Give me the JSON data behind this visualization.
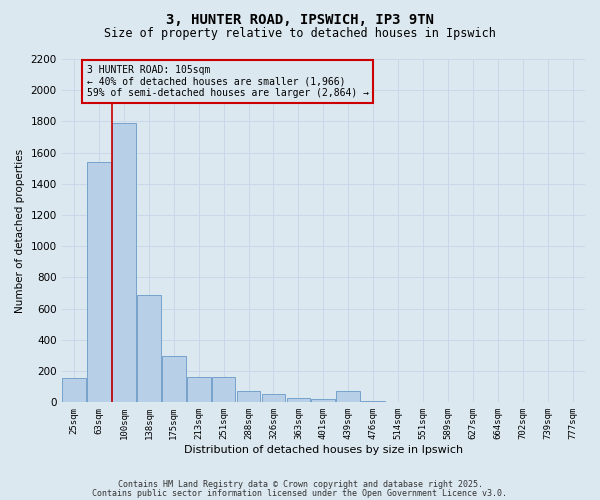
{
  "title_line1": "3, HUNTER ROAD, IPSWICH, IP3 9TN",
  "title_line2": "Size of property relative to detached houses in Ipswich",
  "xlabel": "Distribution of detached houses by size in Ipswich",
  "ylabel": "Number of detached properties",
  "categories": [
    "25sqm",
    "63sqm",
    "100sqm",
    "138sqm",
    "175sqm",
    "213sqm",
    "251sqm",
    "288sqm",
    "326sqm",
    "363sqm",
    "401sqm",
    "439sqm",
    "476sqm",
    "514sqm",
    "551sqm",
    "589sqm",
    "627sqm",
    "664sqm",
    "702sqm",
    "739sqm",
    "777sqm"
  ],
  "values": [
    155,
    1540,
    1790,
    690,
    300,
    165,
    165,
    75,
    55,
    30,
    20,
    70,
    10,
    5,
    0,
    0,
    0,
    0,
    0,
    0,
    0
  ],
  "bar_color": "#b8cfe8",
  "bar_edge_color": "#6899c8",
  "grid_color": "#c8d8e8",
  "background_color": "#dce8f0",
  "vline_x": 1.5,
  "vline_color": "#cc0000",
  "annotation_text": "3 HUNTER ROAD: 105sqm\n← 40% of detached houses are smaller (1,966)\n59% of semi-detached houses are larger (2,864) →",
  "annotation_box_color": "#cc0000",
  "ylim": [
    0,
    2200
  ],
  "yticks": [
    0,
    200,
    400,
    600,
    800,
    1000,
    1200,
    1400,
    1600,
    1800,
    2000,
    2200
  ],
  "footer_line1": "Contains HM Land Registry data © Crown copyright and database right 2025.",
  "footer_line2": "Contains public sector information licensed under the Open Government Licence v3.0."
}
